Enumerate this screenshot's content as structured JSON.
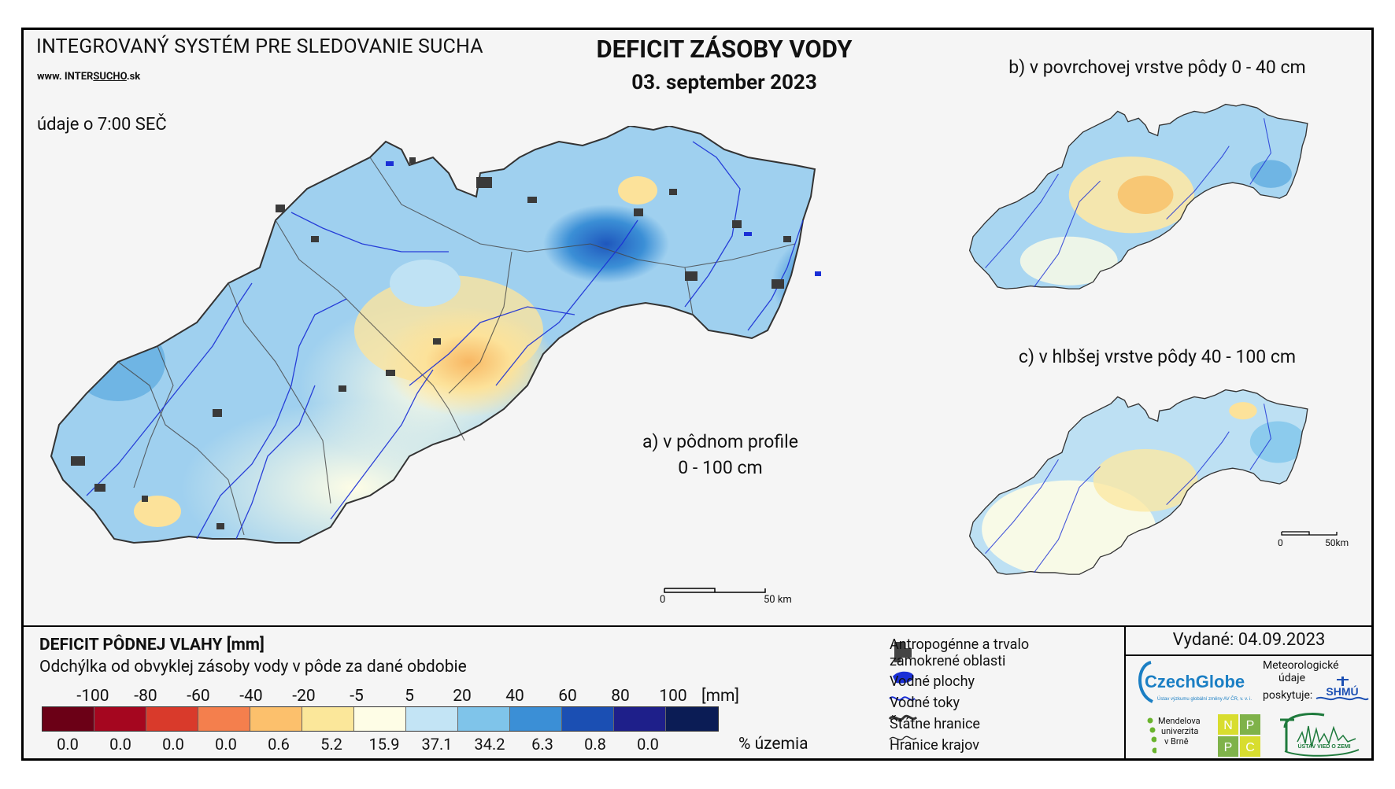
{
  "header": {
    "system_name": "INTEGROVANÝ SYSTÉM PRE SLEDOVANIE SUCHA",
    "website_prefix": "www. INTER",
    "website_mid": "SUCHO",
    "website_suffix": ".sk",
    "time_note": "údaje o 7:00 SEČ",
    "title": "DEFICIT ZÁSOBY VODY",
    "date": "03. september 2023"
  },
  "maps": {
    "a_label_line1": "a) v pôdnom profile",
    "a_label_line2": "0 - 100 cm",
    "b_label": "b) v povrchovej vrstve pôdy 0 - 40 cm",
    "c_label": "c) v hlbšej vrstve pôdy 40 - 100 cm",
    "scale_main_start": "0",
    "scale_main_end": "50 km",
    "scale_small_start": "0",
    "scale_small_end": "50km"
  },
  "legend": {
    "title": "DEFICIT PÔDNEJ VLAHY [mm]",
    "subtitle": "Odchýlka od obvyklej zásoby vody v pôde za dané obdobie",
    "unit": "[mm]",
    "percent_label": "% územia",
    "breaks": [
      "-100",
      "-80",
      "-60",
      "-40",
      "-20",
      "-5",
      "5",
      "20",
      "40",
      "60",
      "80",
      "100"
    ],
    "classes": [
      {
        "color": "#6b0016",
        "percent": "0.0"
      },
      {
        "color": "#a5061f",
        "percent": "0.0"
      },
      {
        "color": "#d93a2b",
        "percent": "0.0"
      },
      {
        "color": "#f47f4d",
        "percent": "0.0"
      },
      {
        "color": "#fcc06c",
        "percent": "0.6"
      },
      {
        "color": "#fbe79a",
        "percent": "5.2"
      },
      {
        "color": "#fefde6",
        "percent": "15.9"
      },
      {
        "color": "#c3e4f5",
        "percent": "37.1"
      },
      {
        "color": "#7fc4ea",
        "percent": "34.2"
      },
      {
        "color": "#3b8fd6",
        "percent": "6.3"
      },
      {
        "color": "#1b4fb3",
        "percent": "0.8"
      },
      {
        "color": "#1e1f8a",
        "percent": "0.0"
      },
      {
        "color": "#0b1c55",
        "percent": "-"
      }
    ],
    "symbols": {
      "anthropogenic_line1": "Antropogénne a trvalo",
      "anthropogenic_line2": "zamokrené oblasti",
      "water_bodies": "Vodné plochy",
      "rivers": "Vodné toky",
      "state_borders": "Štátne hranice",
      "region_borders": "Hranice krajov"
    }
  },
  "issued": {
    "text": "Vydané: 04.09.2023",
    "czechglobe": "CzechGlobe",
    "czechglobe_sub": "Ústav výzkumu globální změny AV ČR, v. v. i.",
    "meteo_line1": "Meteorologické",
    "meteo_line2": "údaje",
    "meteo_line3": "poskytuje:",
    "shmu": "SHMÚ",
    "mendel_line1": "Mendelova",
    "mendel_line2": "univerzita",
    "mendel_line3": "v Brně",
    "nppc": [
      "N",
      "P",
      "P",
      "C"
    ],
    "uvz": "ÚSTAV VIED O ZEMI"
  },
  "colors": {
    "water": "#1a2fd6",
    "urban": "#3a3a3a",
    "map_base": "#9fd0ef"
  }
}
